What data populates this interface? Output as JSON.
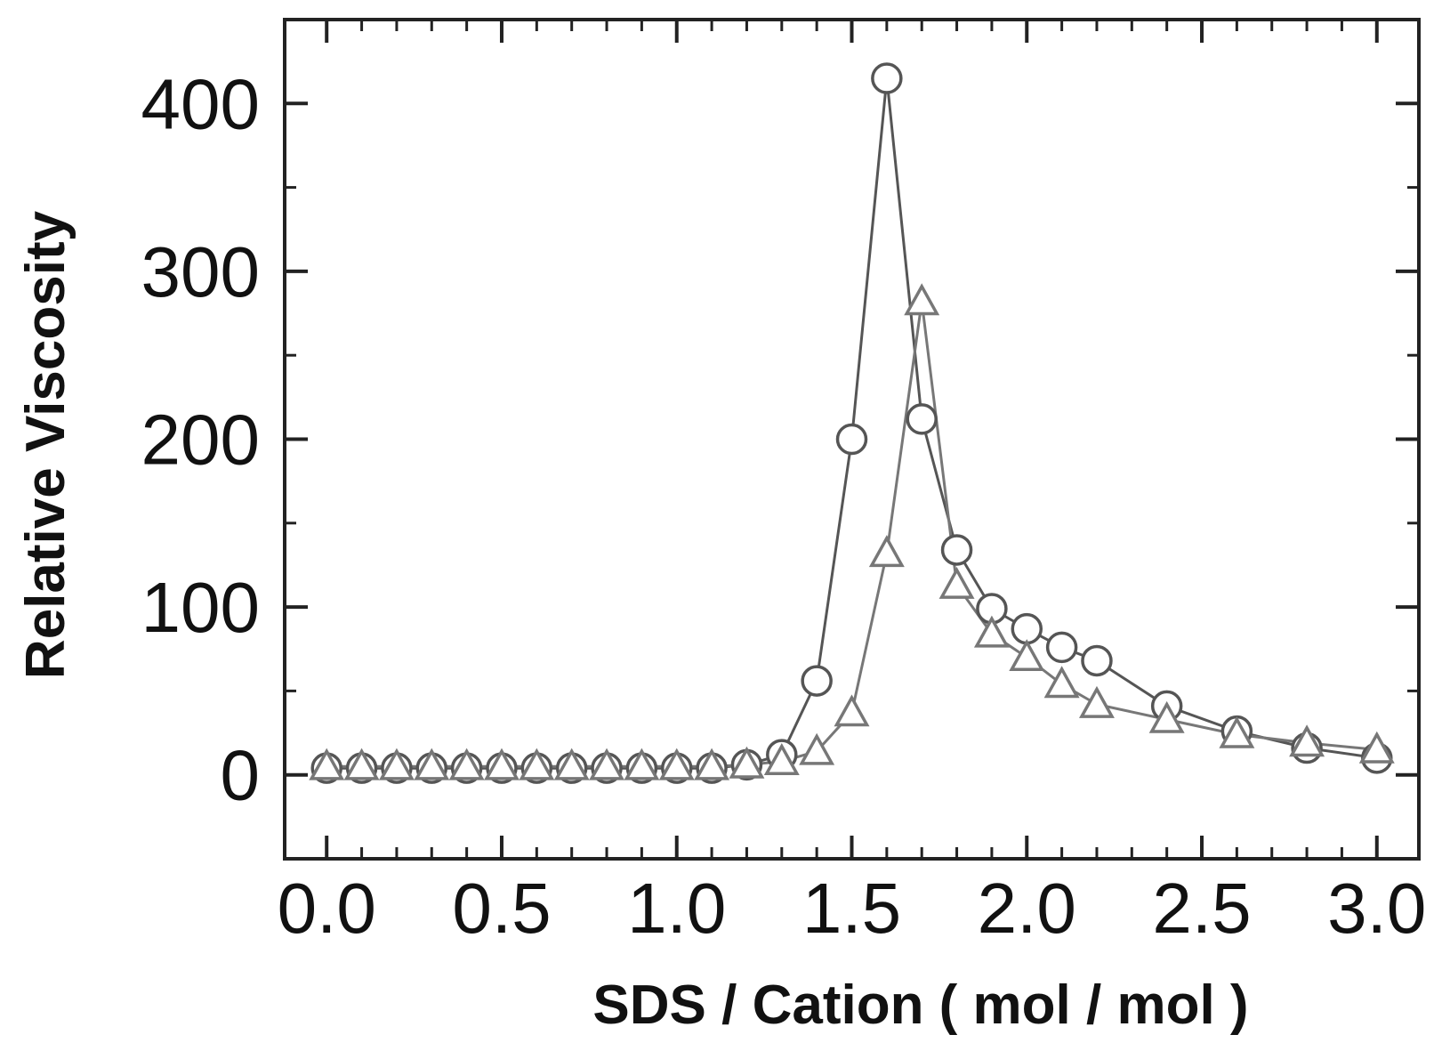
{
  "chart_data": {
    "type": "line",
    "xlabel": "SDS / Cation ( mol / mol )",
    "ylabel": "Relative Viscosity",
    "xlim": [
      -0.12,
      3.12
    ],
    "ylim": [
      -50,
      450
    ],
    "x_ticks": [
      0.0,
      0.5,
      1.0,
      1.5,
      2.0,
      2.5,
      3.0
    ],
    "x_tick_labels": [
      "0.0",
      "0.5",
      "1.0",
      "1.5",
      "2.0",
      "2.5",
      "3.0"
    ],
    "x_minor_ticks": [
      0.1,
      0.2,
      0.3,
      0.4,
      0.6,
      0.7,
      0.8,
      0.9,
      1.1,
      1.2,
      1.3,
      1.4,
      1.6,
      1.7,
      1.8,
      1.9,
      2.1,
      2.2,
      2.3,
      2.4,
      2.6,
      2.7,
      2.8,
      2.9
    ],
    "y_ticks": [
      0,
      100,
      200,
      300,
      400
    ],
    "y_tick_labels": [
      "0",
      "100",
      "200",
      "300",
      "400"
    ],
    "grid": false,
    "legend": "none",
    "series": [
      {
        "marker": "circle",
        "color": "#555555",
        "x": [
          0.0,
          0.1,
          0.2,
          0.3,
          0.4,
          0.5,
          0.6,
          0.7,
          0.8,
          0.9,
          1.0,
          1.1,
          1.2,
          1.3,
          1.4,
          1.5,
          1.6,
          1.7,
          1.8,
          1.9,
          2.0,
          2.1,
          2.2,
          2.4,
          2.6,
          2.8,
          3.0
        ],
        "y": [
          4,
          4,
          4,
          4,
          4,
          4,
          4,
          4,
          4,
          4,
          4,
          4,
          6,
          12,
          56,
          200,
          415,
          212,
          134,
          99,
          87,
          76,
          68,
          41,
          26,
          16,
          10
        ]
      },
      {
        "marker": "triangle",
        "color": "#777777",
        "x": [
          0.0,
          0.1,
          0.2,
          0.3,
          0.4,
          0.5,
          0.6,
          0.7,
          0.8,
          0.9,
          1.0,
          1.1,
          1.2,
          1.3,
          1.4,
          1.5,
          1.6,
          1.7,
          1.8,
          1.9,
          2.0,
          2.1,
          2.2,
          2.4,
          2.6,
          2.8,
          3.0
        ],
        "y": [
          5,
          5,
          5,
          5,
          5,
          5,
          5,
          5,
          5,
          5,
          5,
          5,
          6,
          8,
          14,
          37,
          132,
          282,
          113,
          84,
          70,
          54,
          42,
          33,
          24,
          19,
          15
        ]
      }
    ]
  }
}
